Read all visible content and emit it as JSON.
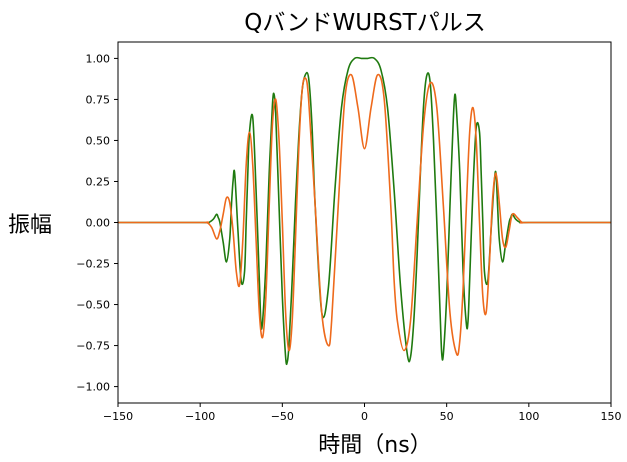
{
  "chart_data": {
    "type": "line",
    "title": "QバンドWURSTパルス",
    "xlabel": "時間（ns）",
    "ylabel": "振幅",
    "xlim": [
      -150,
      150
    ],
    "ylim": [
      -1.1,
      1.1
    ],
    "xticks": [
      -150,
      -100,
      -50,
      0,
      50,
      100,
      150
    ],
    "xtick_labels": [
      "−150",
      "−100",
      "−50",
      "0",
      "50",
      "100",
      "150"
    ],
    "yticks": [
      1.0,
      0.75,
      0.5,
      0.25,
      0.0,
      -0.25,
      -0.5,
      -0.75,
      -1.0
    ],
    "ytick_labels": [
      "1.00",
      "0.75",
      "0.50",
      "0.25",
      "0.00",
      "−0.25",
      "−0.50",
      "−0.75",
      "−1.00"
    ],
    "grid": false,
    "series": [
      {
        "color": "#1f7a0f",
        "x": [
          -150,
          -100,
          -95,
          -92,
          -90,
          -89,
          -88,
          -86,
          -84,
          -82,
          -81,
          -80,
          -79,
          -77,
          -75,
          -73,
          -72,
          -71,
          -70,
          -68,
          -66,
          -64,
          -63,
          -62,
          -60,
          -58,
          -56,
          -55,
          -54,
          -52,
          -50,
          -48,
          -47,
          -46,
          -44,
          -42,
          -40,
          -38,
          -36,
          -34,
          -32,
          -30,
          -26,
          -22,
          -18,
          -14,
          -10,
          -6,
          -2,
          0,
          2,
          6,
          10,
          14,
          18,
          22,
          26,
          28,
          30,
          32,
          34,
          36,
          38,
          40,
          42,
          44,
          46,
          47,
          48,
          50,
          52,
          54,
          55,
          56,
          58,
          60,
          62,
          63,
          64,
          66,
          68,
          70,
          71,
          72,
          73,
          75,
          77,
          79,
          80,
          81,
          82,
          84,
          86,
          88,
          89,
          90,
          92,
          95,
          100,
          150
        ],
        "y": [
          0.0,
          0.0,
          0.0,
          0.02,
          0.05,
          0.03,
          0.0,
          -0.12,
          -0.24,
          -0.1,
          0.1,
          0.25,
          0.3,
          -0.05,
          -0.36,
          -0.3,
          0.0,
          0.3,
          0.55,
          0.64,
          0.2,
          -0.35,
          -0.62,
          -0.6,
          -0.25,
          0.3,
          0.72,
          0.78,
          0.65,
          0.1,
          -0.45,
          -0.82,
          -0.85,
          -0.75,
          -0.35,
          0.12,
          0.52,
          0.8,
          0.9,
          0.88,
          0.6,
          0.1,
          -0.55,
          -0.4,
          0.2,
          0.7,
          0.93,
          1.0,
          1.0,
          1.0,
          1.0,
          1.0,
          0.93,
          0.7,
          0.2,
          -0.4,
          -0.8,
          -0.82,
          -0.6,
          -0.2,
          0.3,
          0.72,
          0.9,
          0.85,
          0.5,
          0.0,
          -0.55,
          -0.8,
          -0.8,
          -0.45,
          0.1,
          0.62,
          0.78,
          0.68,
          0.3,
          -0.3,
          -0.62,
          -0.6,
          -0.35,
          0.2,
          0.58,
          0.55,
          0.3,
          0.0,
          -0.3,
          -0.36,
          -0.05,
          0.25,
          0.3,
          0.1,
          -0.1,
          -0.24,
          -0.12,
          0.0,
          0.03,
          0.05,
          0.02,
          0.0,
          0.0,
          0.0
        ]
      },
      {
        "color": "#ee6a1c",
        "x": [
          -150,
          -100,
          -96,
          -93,
          -90,
          -88,
          -86,
          -84,
          -82,
          -80,
          -78,
          -76,
          -74,
          -72,
          -70,
          -68,
          -66,
          -64,
          -62,
          -60,
          -58,
          -56,
          -54,
          -52,
          -50,
          -48,
          -46,
          -44,
          -42,
          -40,
          -38,
          -36,
          -34,
          -30,
          -26,
          -22,
          -20,
          -16,
          -12,
          -8,
          -4,
          0,
          4,
          8,
          12,
          16,
          18,
          20,
          24,
          28,
          32,
          36,
          40,
          44,
          48,
          52,
          56,
          58,
          60,
          62,
          64,
          66,
          68,
          70,
          72,
          74,
          76,
          78,
          80,
          82,
          84,
          86,
          88,
          90,
          93,
          96,
          100,
          150
        ],
        "y": [
          0.0,
          0.0,
          0.0,
          -0.03,
          -0.1,
          -0.05,
          0.05,
          0.15,
          0.12,
          -0.05,
          -0.3,
          -0.38,
          -0.1,
          0.35,
          0.55,
          0.35,
          -0.1,
          -0.55,
          -0.7,
          -0.45,
          0.1,
          0.6,
          0.75,
          0.5,
          0.0,
          -0.55,
          -0.78,
          -0.6,
          -0.1,
          0.45,
          0.8,
          0.88,
          0.75,
          0.1,
          -0.55,
          -0.75,
          -0.6,
          0.1,
          0.75,
          0.9,
          0.7,
          0.45,
          0.7,
          0.9,
          0.75,
          0.1,
          -0.35,
          -0.6,
          -0.78,
          -0.6,
          0.0,
          0.6,
          0.85,
          0.7,
          0.1,
          -0.55,
          -0.8,
          -0.72,
          -0.4,
          0.1,
          0.55,
          0.7,
          0.5,
          0.0,
          -0.45,
          -0.55,
          -0.25,
          0.15,
          0.3,
          0.12,
          -0.1,
          -0.15,
          -0.05,
          0.05,
          0.03,
          0.0,
          0.0,
          0.0
        ]
      }
    ]
  }
}
